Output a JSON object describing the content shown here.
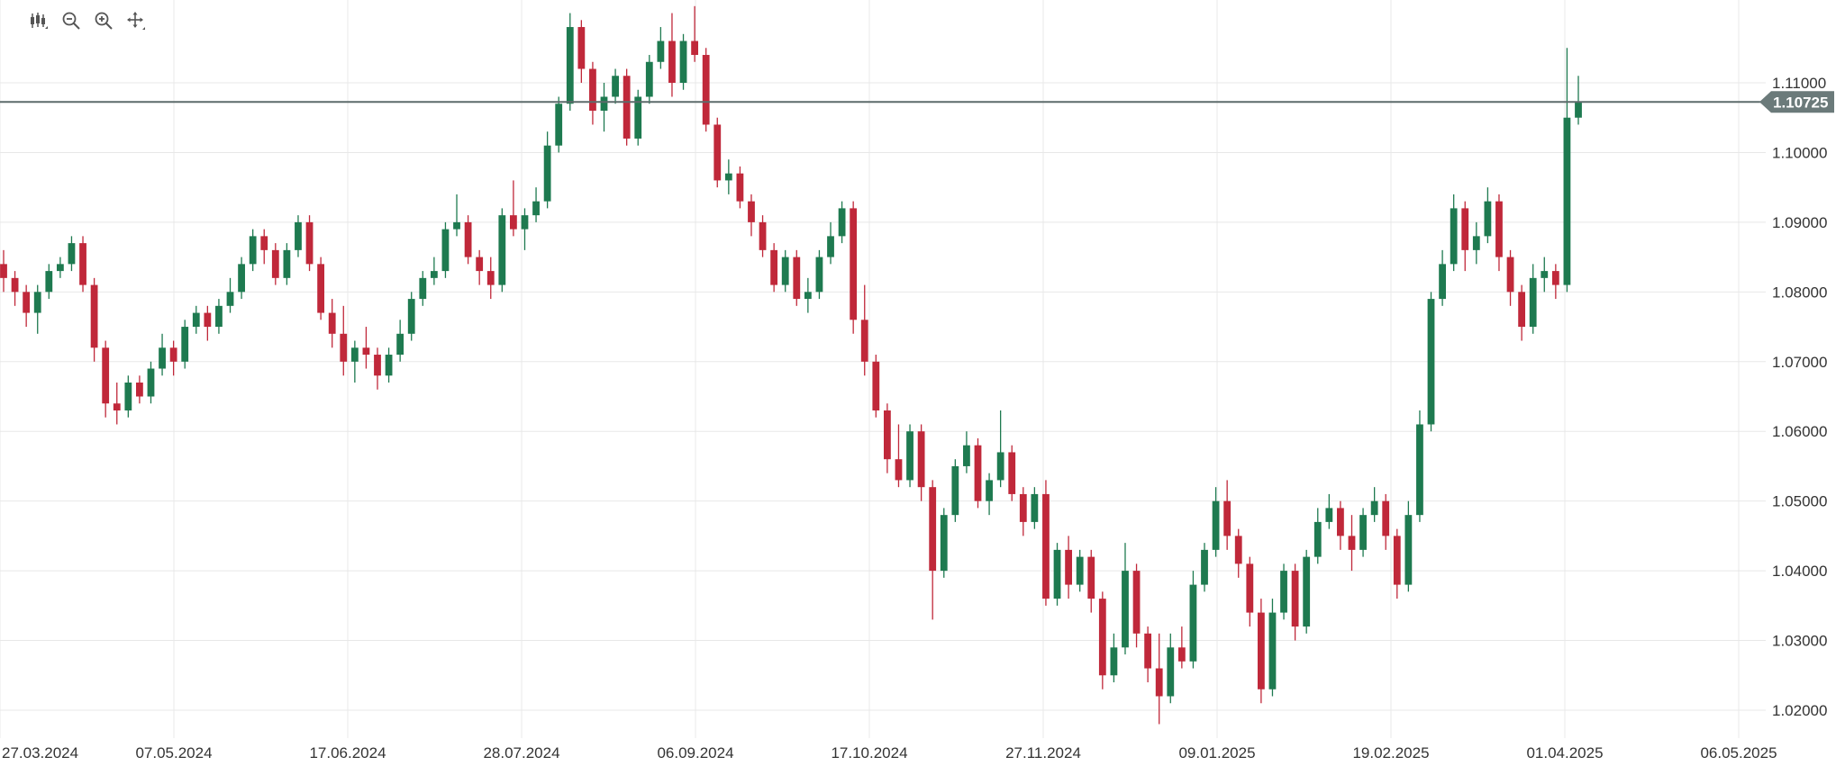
{
  "toolbar": {
    "items": [
      {
        "name": "candlestick-type-icon",
        "interactable": true
      },
      {
        "name": "zoom-out-icon",
        "interactable": true
      },
      {
        "name": "zoom-in-icon",
        "interactable": true
      },
      {
        "name": "pan-icon",
        "interactable": true
      }
    ]
  },
  "colors": {
    "up": "#1e7a50",
    "down": "#c0283a",
    "grid": "#e8e8e8",
    "price_line": "#5d6b6b",
    "current_label_bg": "#6b7a7a"
  },
  "chart_data": {
    "type": "candlestick",
    "title": "",
    "xlabel": "",
    "ylabel": "",
    "current_price": 1.10725,
    "current_price_label": "1.10725",
    "ylim": [
      1.015,
      1.12
    ],
    "y_ticks": [
      "1.02000",
      "1.03000",
      "1.04000",
      "1.05000",
      "1.06000",
      "1.07000",
      "1.08000",
      "1.09000",
      "1.10000",
      "1.11000"
    ],
    "x_ticks": [
      "27.03.2024",
      "07.05.2024",
      "17.06.2024",
      "28.07.2024",
      "06.09.2024",
      "17.10.2024",
      "27.11.2024",
      "09.01.2025",
      "19.02.2025",
      "01.04.2025",
      "06.05.2025"
    ],
    "grid": true,
    "series": [
      {
        "values": [
          [
            1.084,
            1.086,
            1.08,
            1.082
          ],
          [
            1.082,
            1.083,
            1.078,
            1.08
          ],
          [
            1.08,
            1.081,
            1.075,
            1.077
          ],
          [
            1.077,
            1.081,
            1.074,
            1.08
          ],
          [
            1.08,
            1.084,
            1.079,
            1.083
          ],
          [
            1.083,
            1.085,
            1.082,
            1.084
          ],
          [
            1.084,
            1.088,
            1.083,
            1.087
          ],
          [
            1.087,
            1.088,
            1.08,
            1.081
          ],
          [
            1.081,
            1.082,
            1.07,
            1.072
          ],
          [
            1.072,
            1.073,
            1.062,
            1.064
          ],
          [
            1.064,
            1.067,
            1.061,
            1.063
          ],
          [
            1.063,
            1.068,
            1.062,
            1.067
          ],
          [
            1.067,
            1.068,
            1.064,
            1.065
          ],
          [
            1.065,
            1.07,
            1.064,
            1.069
          ],
          [
            1.069,
            1.074,
            1.068,
            1.072
          ],
          [
            1.072,
            1.073,
            1.068,
            1.07
          ],
          [
            1.07,
            1.076,
            1.069,
            1.075
          ],
          [
            1.075,
            1.078,
            1.074,
            1.077
          ],
          [
            1.077,
            1.078,
            1.073,
            1.075
          ],
          [
            1.075,
            1.079,
            1.074,
            1.078
          ],
          [
            1.078,
            1.082,
            1.077,
            1.08
          ],
          [
            1.08,
            1.085,
            1.079,
            1.084
          ],
          [
            1.084,
            1.089,
            1.083,
            1.088
          ],
          [
            1.088,
            1.089,
            1.084,
            1.086
          ],
          [
            1.086,
            1.087,
            1.081,
            1.082
          ],
          [
            1.082,
            1.087,
            1.081,
            1.086
          ],
          [
            1.086,
            1.091,
            1.085,
            1.09
          ],
          [
            1.09,
            1.091,
            1.083,
            1.084
          ],
          [
            1.084,
            1.085,
            1.076,
            1.077
          ],
          [
            1.077,
            1.079,
            1.072,
            1.074
          ],
          [
            1.074,
            1.078,
            1.068,
            1.07
          ],
          [
            1.07,
            1.073,
            1.067,
            1.072
          ],
          [
            1.072,
            1.075,
            1.069,
            1.071
          ],
          [
            1.071,
            1.072,
            1.066,
            1.068
          ],
          [
            1.068,
            1.072,
            1.067,
            1.071
          ],
          [
            1.071,
            1.076,
            1.07,
            1.074
          ],
          [
            1.074,
            1.08,
            1.073,
            1.079
          ],
          [
            1.079,
            1.083,
            1.078,
            1.082
          ],
          [
            1.082,
            1.085,
            1.081,
            1.083
          ],
          [
            1.083,
            1.09,
            1.082,
            1.089
          ],
          [
            1.089,
            1.094,
            1.088,
            1.09
          ],
          [
            1.09,
            1.091,
            1.084,
            1.085
          ],
          [
            1.085,
            1.086,
            1.081,
            1.083
          ],
          [
            1.083,
            1.085,
            1.079,
            1.081
          ],
          [
            1.081,
            1.092,
            1.08,
            1.091
          ],
          [
            1.091,
            1.096,
            1.088,
            1.089
          ],
          [
            1.089,
            1.092,
            1.086,
            1.091
          ],
          [
            1.091,
            1.095,
            1.09,
            1.093
          ],
          [
            1.093,
            1.103,
            1.092,
            1.101
          ],
          [
            1.101,
            1.108,
            1.1,
            1.107
          ],
          [
            1.107,
            1.12,
            1.106,
            1.118
          ],
          [
            1.118,
            1.119,
            1.11,
            1.112
          ],
          [
            1.112,
            1.113,
            1.104,
            1.106
          ],
          [
            1.106,
            1.11,
            1.103,
            1.108
          ],
          [
            1.108,
            1.112,
            1.107,
            1.111
          ],
          [
            1.111,
            1.112,
            1.101,
            1.102
          ],
          [
            1.102,
            1.109,
            1.101,
            1.108
          ],
          [
            1.108,
            1.114,
            1.107,
            1.113
          ],
          [
            1.113,
            1.118,
            1.112,
            1.116
          ],
          [
            1.116,
            1.12,
            1.108,
            1.11
          ],
          [
            1.11,
            1.117,
            1.109,
            1.116
          ],
          [
            1.116,
            1.121,
            1.113,
            1.114
          ],
          [
            1.114,
            1.115,
            1.103,
            1.104
          ],
          [
            1.104,
            1.105,
            1.095,
            1.096
          ],
          [
            1.096,
            1.099,
            1.094,
            1.097
          ],
          [
            1.097,
            1.098,
            1.092,
            1.093
          ],
          [
            1.093,
            1.094,
            1.088,
            1.09
          ],
          [
            1.09,
            1.091,
            1.085,
            1.086
          ],
          [
            1.086,
            1.087,
            1.08,
            1.081
          ],
          [
            1.081,
            1.086,
            1.08,
            1.085
          ],
          [
            1.085,
            1.086,
            1.078,
            1.079
          ],
          [
            1.079,
            1.082,
            1.077,
            1.08
          ],
          [
            1.08,
            1.086,
            1.079,
            1.085
          ],
          [
            1.085,
            1.09,
            1.084,
            1.088
          ],
          [
            1.088,
            1.093,
            1.087,
            1.092
          ],
          [
            1.092,
            1.093,
            1.074,
            1.076
          ],
          [
            1.076,
            1.081,
            1.068,
            1.07
          ],
          [
            1.07,
            1.071,
            1.062,
            1.063
          ],
          [
            1.063,
            1.064,
            1.054,
            1.056
          ],
          [
            1.056,
            1.061,
            1.052,
            1.053
          ],
          [
            1.053,
            1.061,
            1.052,
            1.06
          ],
          [
            1.06,
            1.061,
            1.05,
            1.052
          ],
          [
            1.052,
            1.053,
            1.033,
            1.04
          ],
          [
            1.04,
            1.049,
            1.039,
            1.048
          ],
          [
            1.048,
            1.056,
            1.047,
            1.055
          ],
          [
            1.055,
            1.06,
            1.054,
            1.058
          ],
          [
            1.058,
            1.059,
            1.049,
            1.05
          ],
          [
            1.05,
            1.054,
            1.048,
            1.053
          ],
          [
            1.053,
            1.063,
            1.052,
            1.057
          ],
          [
            1.057,
            1.058,
            1.05,
            1.051
          ],
          [
            1.051,
            1.052,
            1.045,
            1.047
          ],
          [
            1.047,
            1.052,
            1.046,
            1.051
          ],
          [
            1.051,
            1.053,
            1.035,
            1.036
          ],
          [
            1.036,
            1.044,
            1.035,
            1.043
          ],
          [
            1.043,
            1.045,
            1.036,
            1.038
          ],
          [
            1.038,
            1.043,
            1.037,
            1.042
          ],
          [
            1.042,
            1.043,
            1.034,
            1.036
          ],
          [
            1.036,
            1.037,
            1.023,
            1.025
          ],
          [
            1.025,
            1.031,
            1.024,
            1.029
          ],
          [
            1.029,
            1.044,
            1.028,
            1.04
          ],
          [
            1.04,
            1.041,
            1.029,
            1.031
          ],
          [
            1.031,
            1.032,
            1.024,
            1.026
          ],
          [
            1.026,
            1.031,
            1.018,
            1.022
          ],
          [
            1.022,
            1.031,
            1.021,
            1.029
          ],
          [
            1.029,
            1.032,
            1.026,
            1.027
          ],
          [
            1.027,
            1.04,
            1.026,
            1.038
          ],
          [
            1.038,
            1.044,
            1.037,
            1.043
          ],
          [
            1.043,
            1.052,
            1.042,
            1.05
          ],
          [
            1.05,
            1.053,
            1.043,
            1.045
          ],
          [
            1.045,
            1.046,
            1.039,
            1.041
          ],
          [
            1.041,
            1.042,
            1.032,
            1.034
          ],
          [
            1.034,
            1.036,
            1.021,
            1.023
          ],
          [
            1.023,
            1.036,
            1.022,
            1.034
          ],
          [
            1.034,
            1.041,
            1.033,
            1.04
          ],
          [
            1.04,
            1.041,
            1.03,
            1.032
          ],
          [
            1.032,
            1.043,
            1.031,
            1.042
          ],
          [
            1.042,
            1.049,
            1.041,
            1.047
          ],
          [
            1.047,
            1.051,
            1.046,
            1.049
          ],
          [
            1.049,
            1.05,
            1.043,
            1.045
          ],
          [
            1.045,
            1.048,
            1.04,
            1.043
          ],
          [
            1.043,
            1.049,
            1.042,
            1.048
          ],
          [
            1.048,
            1.052,
            1.047,
            1.05
          ],
          [
            1.05,
            1.051,
            1.043,
            1.045
          ],
          [
            1.045,
            1.046,
            1.036,
            1.038
          ],
          [
            1.038,
            1.05,
            1.037,
            1.048
          ],
          [
            1.048,
            1.063,
            1.047,
            1.061
          ],
          [
            1.061,
            1.08,
            1.06,
            1.079
          ],
          [
            1.079,
            1.086,
            1.078,
            1.084
          ],
          [
            1.084,
            1.094,
            1.083,
            1.092
          ],
          [
            1.092,
            1.093,
            1.083,
            1.086
          ],
          [
            1.086,
            1.09,
            1.084,
            1.088
          ],
          [
            1.088,
            1.095,
            1.087,
            1.093
          ],
          [
            1.093,
            1.094,
            1.083,
            1.085
          ],
          [
            1.085,
            1.086,
            1.078,
            1.08
          ],
          [
            1.08,
            1.081,
            1.073,
            1.075
          ],
          [
            1.075,
            1.084,
            1.074,
            1.082
          ],
          [
            1.082,
            1.085,
            1.08,
            1.083
          ],
          [
            1.083,
            1.084,
            1.079,
            1.081
          ],
          [
            1.081,
            1.115,
            1.08,
            1.105
          ],
          [
            1.105,
            1.111,
            1.104,
            1.10725
          ]
        ]
      }
    ]
  }
}
